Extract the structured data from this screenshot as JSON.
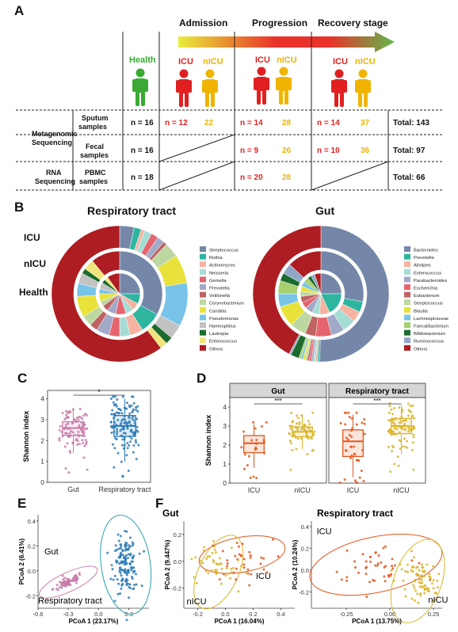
{
  "panel_a": {
    "letter": "A",
    "stages": [
      "Admission",
      "Progression",
      "Recovery stage"
    ],
    "groups": {
      "health": "Health",
      "icu": "ICU",
      "nicu": "nICU"
    },
    "row_categories": [
      {
        "label": "Metagenomic",
        "label2": "Sequencing"
      },
      {
        "label": "RNA",
        "label2": "Sequencing"
      }
    ],
    "sample_types": [
      {
        "label": "Sputum",
        "label2": "samples"
      },
      {
        "label": "Fecal",
        "label2": "samples"
      },
      {
        "label": "PBMC",
        "label2": "samples"
      }
    ],
    "cells": [
      [
        "n = 16",
        "n = 12",
        "22",
        "n = 14",
        "28",
        "n = 14",
        "37",
        "Total: 143"
      ],
      [
        "n = 16",
        "",
        "",
        "n = 9",
        "26",
        "n = 10",
        "36",
        "Total: 97"
      ],
      [
        "n = 18",
        "",
        "",
        "n = 20",
        "28",
        "",
        "",
        "Total: 66"
      ]
    ],
    "colors": {
      "health": "#3aaa35",
      "icu": "#e02020",
      "nicu": "#f0b400"
    }
  },
  "panel_b": {
    "letter": "B",
    "charts": [
      {
        "title": "Respiratory tract",
        "ring_labels": [
          "ICU",
          "nICU",
          "Health"
        ],
        "legend": [
          "Streptococcus",
          "Rothia",
          "Actinomyces",
          "Neisseria",
          "Gemella",
          "Prevotella",
          "Veillonella",
          "Corynebacterium",
          "Candida",
          "Pseudomonas",
          "Haemophilus",
          "Lautropia",
          "Enterococcus",
          "Others"
        ],
        "colors": [
          "#7487a8",
          "#2db5a0",
          "#f6b3a1",
          "#a5ddd5",
          "#e5646d",
          "#a3a9c8",
          "#c06262",
          "#bdd7a0",
          "#e8e23a",
          "#78c3e8",
          "#c2c2c2",
          "#1c6b2e",
          "#f1e47a",
          "#ad1d22"
        ],
        "rings": {
          "outer": [
            0.02,
            0.01,
            0.005,
            0.01,
            0.01,
            0.01,
            0.005,
            0.02,
            0.04,
            0.06,
            0.02,
            0.01,
            0.01,
            0.35
          ],
          "middle": [
            0.33,
            0.08,
            0.05,
            0.04,
            0.04,
            0.05,
            0.03,
            0.04,
            0.08,
            0.05,
            0.04,
            0.02,
            0.04,
            0.11
          ],
          "inner": [
            0.25,
            0.08,
            0.06,
            0.06,
            0.08,
            0.07,
            0.05,
            0.04,
            0.06,
            0.04,
            0.05,
            0.03,
            0.03,
            0.1
          ]
        }
      },
      {
        "title": "Gut",
        "legend": [
          "Bacteroides",
          "Prevotella",
          "Alistipes",
          "Enterococcus",
          "Parabacteroides",
          "Escherichia",
          "Eubacterium",
          "Streptococcus",
          "Blautia",
          "Lachnospiraceae",
          "Faecalibacterium",
          "Bifidobacterium",
          "Ruminococcus",
          "Others"
        ],
        "colors": [
          "#7487a8",
          "#2db5a0",
          "#f6b3a1",
          "#a5ddd5",
          "#a3a9c8",
          "#e5646d",
          "#c06262",
          "#bdd7a0",
          "#e8e23a",
          "#78c3e8",
          "#a6cf6d",
          "#1c6b2e",
          "#8fa8c8",
          "#ad1d22"
        ],
        "rings": {
          "outer": [
            0.5,
            0.005,
            0.005,
            0.005,
            0.005,
            0.005,
            0.005,
            0.005,
            0.005,
            0.005,
            0.005,
            0.02,
            0.005,
            0.42
          ],
          "middle": [
            0.28,
            0.04,
            0.04,
            0.05,
            0.05,
            0.06,
            0.04,
            0.06,
            0.08,
            0.05,
            0.05,
            0.03,
            0.04,
            0.13
          ],
          "inner": [
            0.25,
            0.18,
            0.08,
            0.06,
            0.06,
            0.05,
            0.05,
            0.04,
            0.04,
            0.04,
            0.04,
            0.03,
            0.03,
            0.05
          ]
        }
      }
    ]
  },
  "panel_c": {
    "letter": "C",
    "ylabel": "Shannon index",
    "yticks": [
      "0",
      "1",
      "2",
      "3",
      "4"
    ],
    "categories": [
      "Gut",
      "Respiratory tract"
    ],
    "colors": [
      "#c77aa8",
      "#2c7bb6"
    ],
    "boxes": [
      {
        "q1": 2.25,
        "median": 2.6,
        "q3": 2.9,
        "lo": 1.4,
        "hi": 3.55
      },
      {
        "q1": 2.2,
        "median": 2.7,
        "q3": 3.2,
        "lo": 1.0,
        "hi": 4.0
      }
    ],
    "significance": "*",
    "ylim": [
      0,
      4.4
    ]
  },
  "panel_d": {
    "letter": "D",
    "ylabel": "Shannon index",
    "yticks": [
      "0",
      "1",
      "2",
      "3",
      "4"
    ],
    "facets": [
      {
        "title": "Gut",
        "categories": [
          "ICU",
          "nICU"
        ],
        "boxes": [
          {
            "q1": 1.6,
            "median": 2.1,
            "q3": 2.5,
            "lo": 0.8,
            "hi": 3.1
          },
          {
            "q1": 2.45,
            "median": 2.7,
            "q3": 2.95,
            "lo": 1.8,
            "hi": 3.6
          }
        ],
        "significance": "***"
      },
      {
        "title": "Respiratory tract",
        "categories": [
          "ICU",
          "nICU"
        ],
        "boxes": [
          {
            "q1": 1.4,
            "median": 2.2,
            "q3": 2.8,
            "lo": 0.3,
            "hi": 3.6
          },
          {
            "q1": 2.6,
            "median": 3.0,
            "q3": 3.4,
            "lo": 1.5,
            "hi": 4.1
          }
        ],
        "significance": "***"
      }
    ],
    "colors": [
      "#e2561b",
      "#d9b52a"
    ],
    "ylim": [
      0,
      4.5
    ]
  },
  "panel_e": {
    "letter": "E",
    "xlabel": "PCoA 1 (23.17%)",
    "ylabel": "PCoA 2 (6.41%)",
    "xticks": [
      "-0.6",
      "-0.3",
      "0.0",
      "0.3"
    ],
    "yticks": [
      "0.4",
      "0.2",
      "0.0",
      "-0.2"
    ],
    "groups": [
      "Gut",
      "Respiratory tract"
    ],
    "colors": [
      "#c77aa8",
      "#2c7bb6"
    ],
    "xlim": [
      -0.6,
      0.5
    ],
    "ylim": [
      -0.3,
      0.45
    ]
  },
  "panel_f": {
    "letter": "F",
    "facets": [
      {
        "title": "Gut",
        "xlabel": "PCoA 1 (16.04%)",
        "ylabel": "PCoA 2 (9.447%)",
        "xticks": [
          "-0.2",
          "0.0",
          "0.2",
          "0.4"
        ],
        "yticks": [
          "0.2",
          "0.0",
          "-0.2"
        ],
        "groups": [
          "ICU",
          "nICU"
        ],
        "xlim": [
          -0.3,
          0.5
        ],
        "ylim": [
          -0.35,
          0.3
        ]
      },
      {
        "title": "Respiratory tract",
        "xlabel": "PCoA 1 (13.75%)",
        "ylabel": "PCoA 2 (10.24%)",
        "xticks": [
          "-0.25",
          "0.00",
          "0.25"
        ],
        "yticks": [
          "0.4",
          "0.2",
          "0.0",
          "-0.2"
        ],
        "groups": [
          "ICU",
          "nICU"
        ],
        "xlim": [
          -0.45,
          0.3
        ],
        "ylim": [
          -0.35,
          0.45
        ]
      }
    ],
    "colors": [
      "#e2561b",
      "#d9b52a"
    ]
  }
}
